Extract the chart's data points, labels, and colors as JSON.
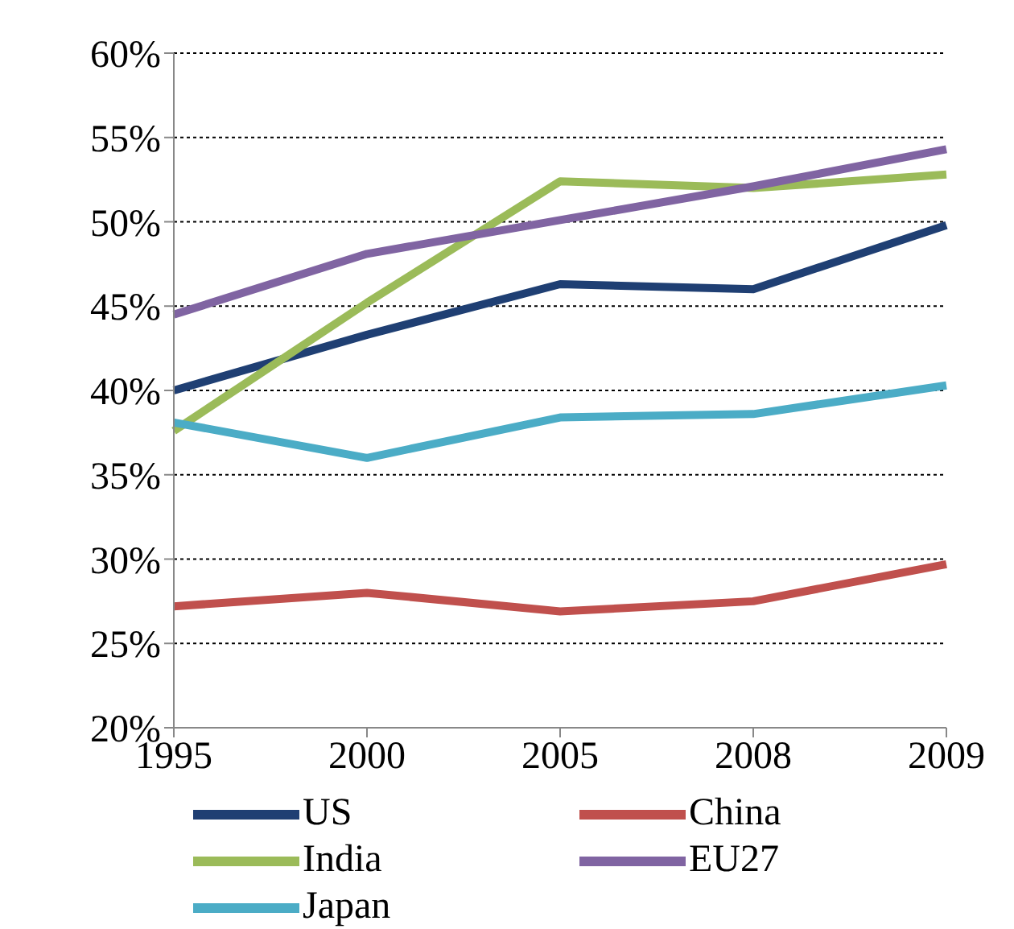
{
  "chart_data": {
    "type": "line",
    "categories": [
      "1995",
      "2000",
      "2005",
      "2008",
      "2009"
    ],
    "series": [
      {
        "name": "US",
        "color": "#1f3f73",
        "values": [
          40,
          43.3,
          46.3,
          46,
          49.8
        ]
      },
      {
        "name": "China",
        "color": "#c0504d",
        "values": [
          27.2,
          28,
          26.9,
          27.5,
          29.7
        ]
      },
      {
        "name": "India",
        "color": "#9bbb59",
        "values": [
          37.6,
          45.2,
          52.4,
          52,
          52.8
        ]
      },
      {
        "name": "EU27",
        "color": "#8064a2",
        "values": [
          44.5,
          48.1,
          50.1,
          52.1,
          54.3
        ]
      },
      {
        "name": "Japan",
        "color": "#4bacc6",
        "values": [
          38.1,
          36,
          38.4,
          38.6,
          40.3
        ]
      }
    ],
    "ylim": [
      20,
      60
    ],
    "yticks": [
      {
        "value": 20,
        "label": "20%"
      },
      {
        "value": 25,
        "label": "25%"
      },
      {
        "value": 30,
        "label": "30%"
      },
      {
        "value": 35,
        "label": "35%"
      },
      {
        "value": 40,
        "label": "40%"
      },
      {
        "value": 45,
        "label": "45%"
      },
      {
        "value": 50,
        "label": "50%"
      },
      {
        "value": 55,
        "label": "55%"
      },
      {
        "value": 60,
        "label": "60%"
      }
    ],
    "grid": "y",
    "legend": "bottom",
    "marker": "none",
    "line_style": "solid"
  }
}
